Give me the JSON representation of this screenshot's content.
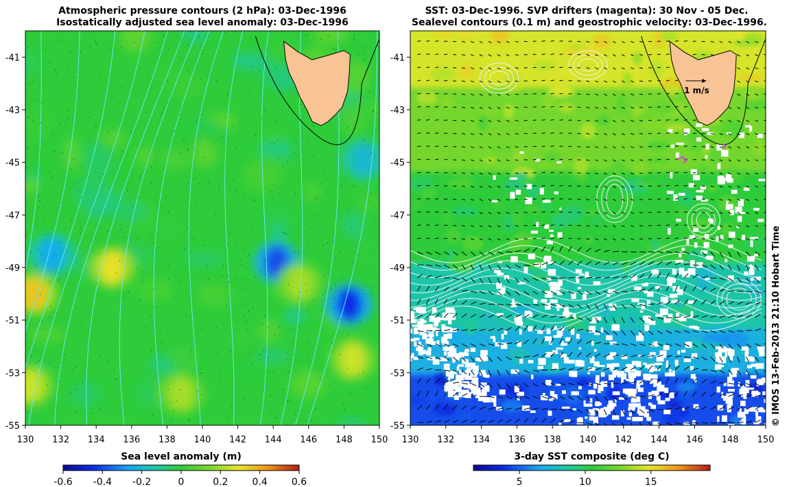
{
  "left_panel": {
    "title_line1": "Atmospheric pressure contours (2 hPa): 03-Dec-1996",
    "title_line2": "Isostatically adjusted sea level anomaly: 03-Dec-1996"
  },
  "right_panel": {
    "title_line1": "SST: 03-Dec-1996. SVP drifters (magenta): 30 Nov - 05 Dec.",
    "title_line2": "Sealevel contours (0.1 m) and geostrophic velocity: 03-Dec-1996.",
    "scale_arrow_label": "1 m/s"
  },
  "credit": "© IMOS 13-Feb-2013 21:10 Hobart Time",
  "colors": {
    "land": "#f9c495",
    "sea_base": "#2ecc3a",
    "pressure_contour": "#66e8f0",
    "sealevel_contour": "#f2f2f2",
    "drifter": "#e040e0"
  },
  "chart_data": [
    {
      "type": "heatmap",
      "title": "Atmospheric pressure contours (2 hPa): 03-Dec-1996 / Isostatically adjusted sea level anomaly: 03-Dec-1996",
      "xlim": [
        130,
        150
      ],
      "ylim": [
        -55,
        -40
      ],
      "x_ticks": [
        130,
        132,
        134,
        136,
        138,
        140,
        142,
        144,
        146,
        148,
        150
      ],
      "y_ticks": [
        -41,
        -43,
        -45,
        -47,
        -49,
        -51,
        -53,
        -55
      ],
      "colorbar": {
        "label": "Sea level anomaly (m)",
        "range": [
          -0.6,
          0.6
        ],
        "ticks": [
          -0.6,
          -0.4,
          -0.2,
          0,
          0.2,
          0.4,
          0.6
        ]
      },
      "features": [
        {
          "lon": 131.5,
          "lat": -48.5,
          "value": -0.25
        },
        {
          "lon": 144.2,
          "lat": -48.8,
          "value": -0.4
        },
        {
          "lon": 148.3,
          "lat": -50.4,
          "value": -0.45
        },
        {
          "lon": 149.1,
          "lat": -44.9,
          "value": -0.2
        },
        {
          "lon": 134.9,
          "lat": -49.0,
          "value": 0.3
        },
        {
          "lon": 130.5,
          "lat": -50.0,
          "value": 0.35
        },
        {
          "lon": 148.5,
          "lat": -52.5,
          "value": 0.25
        },
        {
          "lon": 145.5,
          "lat": -49.6,
          "value": 0.2
        },
        {
          "lon": 130.3,
          "lat": -53.5,
          "value": 0.25
        },
        {
          "lon": 138.8,
          "lat": -53.8,
          "value": 0.2
        }
      ]
    },
    {
      "type": "heatmap",
      "title": "SST: 03-Dec-1996. SVP drifters (magenta): 30 Nov - 05 Dec. / Sealevel contours (0.1 m) and geostrophic velocity: 03-Dec-1996.",
      "xlim": [
        130,
        150
      ],
      "ylim": [
        -55,
        -40
      ],
      "x_ticks": [
        130,
        132,
        134,
        136,
        138,
        140,
        142,
        144,
        146,
        148,
        150
      ],
      "y_ticks": [
        -41,
        -43,
        -45,
        -47,
        -49,
        -51,
        -53,
        -55
      ],
      "colorbar": {
        "label": "3-day SST composite (deg C)",
        "range": [
          1.5,
          19.5
        ],
        "ticks": [
          5,
          10,
          15
        ]
      },
      "bands": [
        {
          "lat_from": -40,
          "lat_to": -42.3,
          "sst": 14.5
        },
        {
          "lat_from": -42.3,
          "lat_to": -45.5,
          "sst": 12.5
        },
        {
          "lat_from": -45.5,
          "lat_to": -49,
          "sst": 10.5
        },
        {
          "lat_from": -49,
          "lat_to": -51.5,
          "sst": 8.5
        },
        {
          "lat_from": -51.5,
          "lat_to": -53.2,
          "sst": 7
        },
        {
          "lat_from": -53.2,
          "lat_to": -55,
          "sst": 4.5
        }
      ]
    }
  ]
}
